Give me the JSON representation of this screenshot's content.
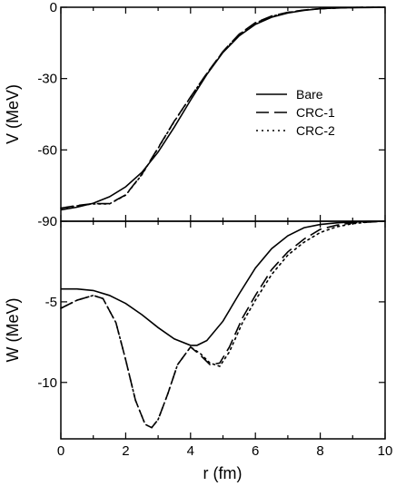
{
  "chart_data": [
    {
      "type": "line",
      "panel": "top",
      "ylabel": "V (MeV)",
      "xlim": [
        0,
        10
      ],
      "ylim": [
        -90,
        0
      ],
      "xticks": [
        0,
        2,
        4,
        6,
        8,
        10
      ],
      "yticks": [
        0,
        -30,
        -60,
        -90
      ],
      "legend_position": "middle-right",
      "grid": false,
      "series": [
        {
          "name": "Bare",
          "style": "solid",
          "x": [
            0,
            0.5,
            1.0,
            1.5,
            2.0,
            2.5,
            3.0,
            3.5,
            4.0,
            4.5,
            5.0,
            5.5,
            6.0,
            6.5,
            7.0,
            7.5,
            8.0,
            8.5,
            9.0,
            9.5,
            10
          ],
          "y": [
            -85.2,
            -84.1,
            -82.4,
            -79.7,
            -75.5,
            -69.4,
            -60.9,
            -50.4,
            -39.1,
            -28.3,
            -19.0,
            -12.0,
            -7.2,
            -4.2,
            -2.4,
            -1.3,
            -0.6,
            -0.3,
            -0.2,
            -0.1,
            0
          ]
        },
        {
          "name": "CRC-1",
          "style": "dashed",
          "x": [
            0,
            0.5,
            1.0,
            1.5,
            2.0,
            2.5,
            3.0,
            3.5,
            4.0,
            4.5,
            5.0,
            5.5,
            6.0,
            6.5,
            7.0,
            7.5,
            8.0,
            8.5,
            9.0,
            9.5,
            10
          ],
          "y": [
            -84.5,
            -83.4,
            -82.6,
            -82.6,
            -78.9,
            -70.2,
            -59.1,
            -47.9,
            -37.7,
            -27.8,
            -18.6,
            -11.3,
            -6.5,
            -3.7,
            -2.1,
            -1.2,
            -0.6,
            -0.3,
            -0.1,
            0,
            0
          ]
        },
        {
          "name": "CRC-2",
          "style": "dotted",
          "x": [
            0,
            0.5,
            1.0,
            1.5,
            2.0,
            2.5,
            3.0,
            3.5,
            4.0,
            4.5,
            5.0,
            5.5,
            6.0,
            6.5,
            7.0,
            7.5,
            8.0,
            8.5,
            9.0,
            9.5,
            10
          ],
          "y": [
            -84.5,
            -83.5,
            -82.7,
            -82.7,
            -79.0,
            -70.4,
            -59.3,
            -48.0,
            -37.8,
            -27.9,
            -18.7,
            -11.4,
            -6.6,
            -3.8,
            -2.2,
            -1.2,
            -0.6,
            -0.3,
            -0.1,
            0,
            0
          ]
        }
      ]
    },
    {
      "type": "line",
      "panel": "bottom",
      "xlabel": "r (fm)",
      "ylabel": "W (MeV)",
      "xlim": [
        0,
        10
      ],
      "ylim": [
        -13.5,
        0
      ],
      "xticks": [
        0,
        2,
        4,
        6,
        8,
        10
      ],
      "yticks": [
        -5,
        -10
      ],
      "grid": false,
      "series": [
        {
          "name": "Bare",
          "style": "solid",
          "x": [
            0,
            0.5,
            1.0,
            1.5,
            2.0,
            2.5,
            3.0,
            3.5,
            4.0,
            4.2,
            4.5,
            5.0,
            5.5,
            6.0,
            6.5,
            7.0,
            7.5,
            8.0,
            8.5,
            9.0,
            9.5,
            10
          ],
          "y": [
            -4.2,
            -4.2,
            -4.3,
            -4.6,
            -5.1,
            -5.8,
            -6.6,
            -7.3,
            -7.7,
            -7.7,
            -7.4,
            -6.2,
            -4.5,
            -2.9,
            -1.7,
            -0.9,
            -0.4,
            -0.2,
            -0.1,
            -0.05,
            0,
            0
          ]
        },
        {
          "name": "CRC-1",
          "style": "dashed",
          "x": [
            0,
            0.5,
            1.0,
            1.3,
            1.7,
            2.0,
            2.3,
            2.6,
            2.8,
            3.0,
            3.3,
            3.6,
            4.0,
            4.3,
            4.6,
            4.9,
            5.2,
            5.6,
            6.0,
            6.5,
            7.0,
            7.5,
            8.0,
            8.5,
            9.0,
            9.5,
            10
          ],
          "y": [
            -5.4,
            -4.9,
            -4.6,
            -4.8,
            -6.3,
            -8.6,
            -11.1,
            -12.6,
            -12.8,
            -12.3,
            -10.7,
            -8.9,
            -7.8,
            -8.3,
            -8.9,
            -8.8,
            -7.8,
            -6.0,
            -4.6,
            -3.0,
            -1.9,
            -1.1,
            -0.5,
            -0.25,
            -0.1,
            -0.05,
            0
          ]
        },
        {
          "name": "CRC-2",
          "style": "dotted",
          "x": [
            0,
            0.5,
            1.0,
            1.3,
            1.7,
            2.0,
            2.3,
            2.6,
            2.8,
            3.0,
            3.3,
            3.6,
            4.0,
            4.3,
            4.6,
            4.9,
            5.2,
            5.6,
            6.0,
            6.5,
            7.0,
            7.5,
            8.0,
            8.5,
            9.0,
            9.5,
            10
          ],
          "y": [
            -5.4,
            -4.9,
            -4.6,
            -4.8,
            -6.3,
            -8.6,
            -11.1,
            -12.6,
            -12.8,
            -12.3,
            -10.7,
            -8.9,
            -7.8,
            -8.2,
            -8.8,
            -9.0,
            -8.1,
            -6.3,
            -4.9,
            -3.3,
            -2.1,
            -1.3,
            -0.7,
            -0.35,
            -0.15,
            -0.05,
            0
          ]
        }
      ]
    }
  ]
}
